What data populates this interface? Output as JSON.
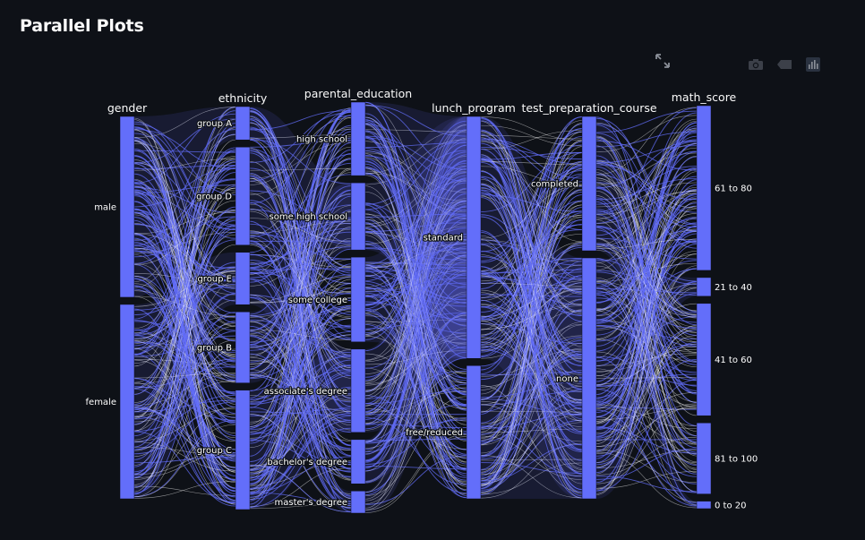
{
  "page": {
    "title": "Parallel Plots"
  },
  "toolbar": {
    "items": [
      {
        "name": "expand-icon",
        "label": ""
      },
      {
        "name": "camera-icon",
        "label": ""
      },
      {
        "name": "tag-icon",
        "label": ""
      },
      {
        "name": "plotly-bar-icon",
        "label": ""
      }
    ]
  },
  "colors": {
    "background": "#0e1117",
    "bar": "#636efa",
    "ribbon": "#636efa",
    "ribbon_highlight": "#ffffff",
    "text": "#fafafa"
  },
  "chart_data": {
    "type": "parallel_categories",
    "title": "",
    "dimensions": [
      {
        "name": "gender",
        "categories": [
          {
            "label": "male",
            "count": 482
          },
          {
            "label": "female",
            "count": 518
          }
        ]
      },
      {
        "name": "ethnicity",
        "categories": [
          {
            "label": "group A",
            "count": 89
          },
          {
            "label": "group D",
            "count": 262
          },
          {
            "label": "group E",
            "count": 140
          },
          {
            "label": "group B",
            "count": 190
          },
          {
            "label": "group C",
            "count": 319
          }
        ]
      },
      {
        "name": "parental_education",
        "categories": [
          {
            "label": "high school",
            "count": 196
          },
          {
            "label": "some high school",
            "count": 179
          },
          {
            "label": "some college",
            "count": 226
          },
          {
            "label": "associate's degree",
            "count": 222
          },
          {
            "label": "bachelor's degree",
            "count": 118
          },
          {
            "label": "master's degree",
            "count": 59
          }
        ]
      },
      {
        "name": "lunch_program",
        "categories": [
          {
            "label": "standard",
            "count": 645
          },
          {
            "label": "free/reduced",
            "count": 355
          }
        ]
      },
      {
        "name": "test_preparation_course",
        "categories": [
          {
            "label": "completed",
            "count": 358
          },
          {
            "label": "none",
            "count": 642
          }
        ]
      },
      {
        "name": "math_score",
        "categories": [
          {
            "label": "61 to 80",
            "count": 440
          },
          {
            "label": "21 to 40",
            "count": 50
          },
          {
            "label": "41 to 60",
            "count": 300
          },
          {
            "label": "81 to 100",
            "count": 190
          },
          {
            "label": "0 to 20",
            "count": 20
          }
        ]
      }
    ]
  }
}
